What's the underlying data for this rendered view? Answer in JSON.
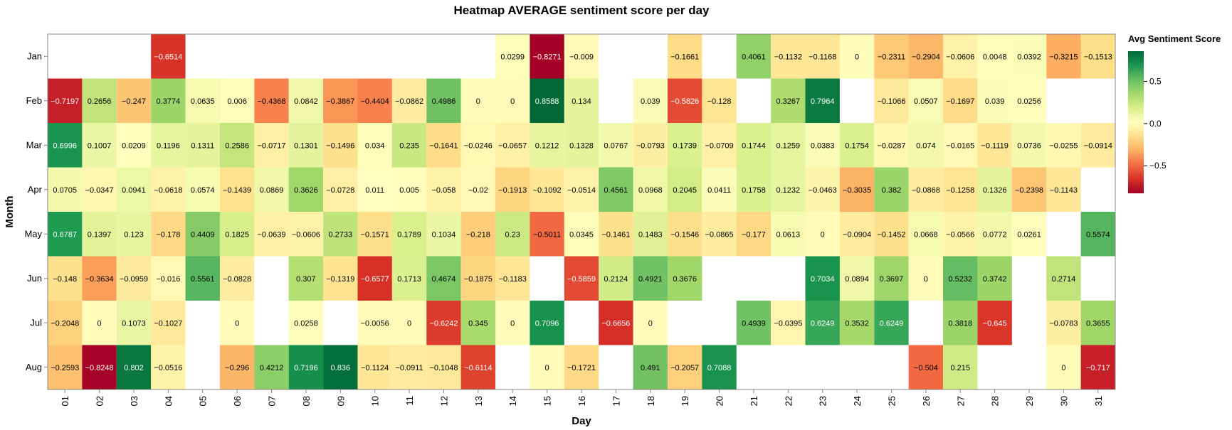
{
  "chart_data": {
    "type": "heatmap",
    "title": "Heatmap AVERAGE sentiment score per day",
    "xlabel": "Day",
    "ylabel": "Month",
    "x_categories": [
      "01",
      "02",
      "03",
      "04",
      "05",
      "06",
      "07",
      "08",
      "09",
      "10",
      "11",
      "12",
      "13",
      "14",
      "15",
      "16",
      "17",
      "18",
      "19",
      "20",
      "21",
      "22",
      "23",
      "24",
      "25",
      "26",
      "27",
      "28",
      "29",
      "30",
      "31"
    ],
    "y_categories": [
      "Jan",
      "Feb",
      "Mar",
      "Apr",
      "May",
      "Jun",
      "Jul",
      "Aug"
    ],
    "values": [
      [
        null,
        null,
        null,
        -0.6514,
        null,
        null,
        null,
        null,
        null,
        null,
        null,
        null,
        null,
        0.0299,
        -0.8271,
        -0.009,
        null,
        null,
        -0.1661,
        null,
        0.4061,
        -0.1132,
        -0.1168,
        0,
        -0.2311,
        -0.2904,
        -0.0606,
        0.0048,
        0.0392,
        -0.3215,
        -0.1513
      ],
      [
        -0.7197,
        0.2656,
        -0.247,
        0.3774,
        0.0635,
        0.006,
        -0.4368,
        0.0842,
        -0.3867,
        -0.4404,
        -0.0862,
        0.4986,
        0,
        0,
        0.8588,
        0.134,
        null,
        0.039,
        -0.5826,
        -0.128,
        null,
        0.3267,
        0.7964,
        null,
        -0.1066,
        0.0507,
        -0.1697,
        0.039,
        0.0256,
        null,
        null
      ],
      [
        0.6996,
        0.1007,
        0.0209,
        0.1196,
        0.1311,
        0.2586,
        -0.0717,
        0.1301,
        -0.1496,
        0.034,
        0.235,
        -0.1641,
        -0.0246,
        -0.0657,
        0.1212,
        0.1328,
        0.0767,
        -0.0793,
        0.1739,
        -0.0709,
        0.1744,
        0.1259,
        0.0383,
        0.1754,
        -0.0287,
        0.074,
        -0.0165,
        -0.1119,
        0.0736,
        -0.0255,
        -0.0914
      ],
      [
        0.0705,
        -0.0347,
        0.0941,
        -0.0618,
        0.0574,
        -0.1439,
        0.0869,
        0.3626,
        -0.0728,
        0.011,
        0.005,
        -0.058,
        -0.02,
        -0.1913,
        -0.1092,
        -0.0514,
        0.4561,
        0.0968,
        0.2045,
        0.0411,
        0.1758,
        0.1232,
        -0.0463,
        -0.3035,
        0.382,
        -0.0868,
        -0.1258,
        0.1326,
        -0.2398,
        -0.1143,
        null
      ],
      [
        0.6787,
        0.1397,
        0.123,
        -0.178,
        0.4409,
        0.1825,
        -0.0639,
        -0.0606,
        0.2733,
        -0.1571,
        0.1789,
        0.1034,
        -0.218,
        0.23,
        -0.5011,
        0.0345,
        -0.1461,
        0.1483,
        -0.1546,
        -0.0865,
        -0.177,
        0.0613,
        0,
        -0.0904,
        -0.1452,
        0.0668,
        -0.0566,
        0.0772,
        0.0261,
        null,
        0.5574
      ],
      [
        -0.148,
        -0.3634,
        -0.0959,
        -0.016,
        0.5561,
        -0.0828,
        null,
        0.307,
        -0.1319,
        -0.6577,
        0.1713,
        0.4674,
        -0.1875,
        -0.1183,
        null,
        -0.5859,
        0.2124,
        0.4921,
        0.3676,
        null,
        null,
        null,
        0.7034,
        0.0894,
        0.3697,
        0,
        0.5232,
        0.3742,
        null,
        0.2714,
        null
      ],
      [
        -0.2048,
        0,
        0.1073,
        -0.1027,
        null,
        0,
        null,
        0.0258,
        null,
        -0.0056,
        0,
        -0.6242,
        0.345,
        0,
        0.7096,
        null,
        -0.6656,
        0,
        null,
        null,
        0.4939,
        -0.0395,
        0.6249,
        0.3532,
        0.6249,
        null,
        0.3818,
        -0.645,
        null,
        -0.0783,
        0.3655
      ],
      [
        -0.2593,
        -0.8248,
        0.802,
        -0.0516,
        null,
        -0.296,
        0.4212,
        0.7196,
        0.836,
        -0.1124,
        -0.0911,
        -0.1048,
        -0.6114,
        null,
        0,
        -0.1721,
        null,
        0.491,
        -0.2057,
        0.7088,
        null,
        null,
        null,
        null,
        null,
        -0.504,
        0.215,
        null,
        null,
        0,
        -0.717
      ]
    ],
    "labels": [
      [
        null,
        null,
        null,
        "−0.6514",
        null,
        null,
        null,
        null,
        null,
        null,
        null,
        null,
        null,
        "0.0299",
        "−0.8271",
        "−0.009",
        null,
        null,
        "−0.1661",
        null,
        "0.4061",
        "−0.1132",
        "−0.1168",
        "0",
        "−0.2311",
        "−0.2904",
        "−0.0606",
        "0.0048",
        "0.0392",
        "−0.3215",
        "−0.1513"
      ],
      [
        "−0.7197",
        "0.2656",
        "−0.247",
        "0.3774",
        "0.0635",
        "0.006",
        "−0.4368",
        "0.0842",
        "−0.3867",
        "−0.4404",
        "−0.0862",
        "0.4986",
        "0",
        "0",
        "0.8588",
        "0.134",
        null,
        "0.039",
        "−0.5826",
        "−0.128",
        null,
        "0.3267",
        "0.7964",
        null,
        "−0.1066",
        "0.0507",
        "−0.1697",
        "0.039",
        "0.0256",
        null,
        null
      ],
      [
        "0.6996",
        "0.1007",
        "0.0209",
        "0.1196",
        "0.1311",
        "0.2586",
        "−0.0717",
        "0.1301",
        "−0.1496",
        "0.034",
        "0.235",
        "−0.1641",
        "−0.0246",
        "−0.0657",
        "0.1212",
        "0.1328",
        "0.0767",
        "−0.0793",
        "0.1739",
        "−0.0709",
        "0.1744",
        "0.1259",
        "0.0383",
        "0.1754",
        "−0.0287",
        "0.074",
        "−0.0165",
        "−0.1119",
        "0.0736",
        "−0.0255",
        "−0.0914"
      ],
      [
        "0.0705",
        "−0.0347",
        "0.0941",
        "−0.0618",
        "0.0574",
        "−0.1439",
        "0.0869",
        "0.3626",
        "−0.0728",
        "0.011",
        "0.005",
        "−0.058",
        "−0.02",
        "−0.1913",
        "−0.1092",
        "−0.0514",
        "0.4561",
        "0.0968",
        "0.2045",
        "0.0411",
        "0.1758",
        "0.1232",
        "−0.0463",
        "−0.3035",
        "0.382",
        "−0.0868",
        "−0.1258",
        "0.1326",
        "−0.2398",
        "−0.1143",
        null
      ],
      [
        "0.6787",
        "0.1397",
        "0.123",
        "−0.178",
        "0.4409",
        "0.1825",
        "−0.0639",
        "−0.0606",
        "0.2733",
        "−0.1571",
        "0.1789",
        "0.1034",
        "−0.218",
        "0.23",
        "−0.5011",
        "0.0345",
        "−0.1461",
        "0.1483",
        "−0.1546",
        "−0.0865",
        "−0.177",
        "0.0613",
        "0",
        "−0.0904",
        "−0.1452",
        "0.0668",
        "−0.0566",
        "0.0772",
        "0.0261",
        null,
        "0.5574"
      ],
      [
        "−0.148",
        "−0.3634",
        "−0.0959",
        "−0.016",
        "0.5561",
        "−0.0828",
        null,
        "0.307",
        "−0.1319",
        "−0.6577",
        "0.1713",
        "0.4674",
        "−0.1875",
        "−0.1183",
        null,
        "−0.5859",
        "0.2124",
        "0.4921",
        "0.3676",
        null,
        null,
        null,
        "0.7034",
        "0.0894",
        "0.3697",
        "0",
        "0.5232",
        "0.3742",
        null,
        "0.2714",
        null
      ],
      [
        "−0.2048",
        "0",
        "0.1073",
        "−0.1027",
        null,
        "0",
        null,
        "0.0258",
        null,
        "−0.0056",
        "0",
        "−0.6242",
        "0.345",
        "0",
        "0.7096",
        null,
        "−0.6656",
        "0",
        null,
        null,
        "0.4939",
        "−0.0395",
        "0.6249",
        "0.3532",
        "0.6249",
        null,
        "0.3818",
        "−0.645",
        null,
        "−0.0783",
        "0.3655"
      ],
      [
        "−0.2593",
        "−0.8248",
        "0.802",
        "−0.0516",
        null,
        "−0.296",
        "0.4212",
        "0.7196",
        "0.836",
        "−0.1124",
        "−0.0911",
        "−0.1048",
        "−0.6114",
        null,
        "0",
        "−0.1721",
        null,
        "0.491",
        "−0.2057",
        "0.7088",
        null,
        null,
        null,
        null,
        null,
        "−0.504",
        "0.215",
        null,
        null,
        "0",
        "−0.717"
      ]
    ],
    "color_scale": {
      "domain": [
        -0.8271,
        0.8588
      ],
      "scheme": "red-yellow-green",
      "stops": [
        "#a50026",
        "#d73027",
        "#f46d43",
        "#fdae61",
        "#fee08b",
        "#ffffbf",
        "#d9ef8b",
        "#a6d96a",
        "#66bd63",
        "#1a9850",
        "#006837"
      ]
    },
    "legend": {
      "title": "Avg Sentiment Score",
      "ticks": [
        0.5,
        0.0,
        -0.5
      ],
      "tick_labels": [
        "0.5",
        "0.0",
        "−0.5"
      ],
      "placement": "right"
    }
  }
}
